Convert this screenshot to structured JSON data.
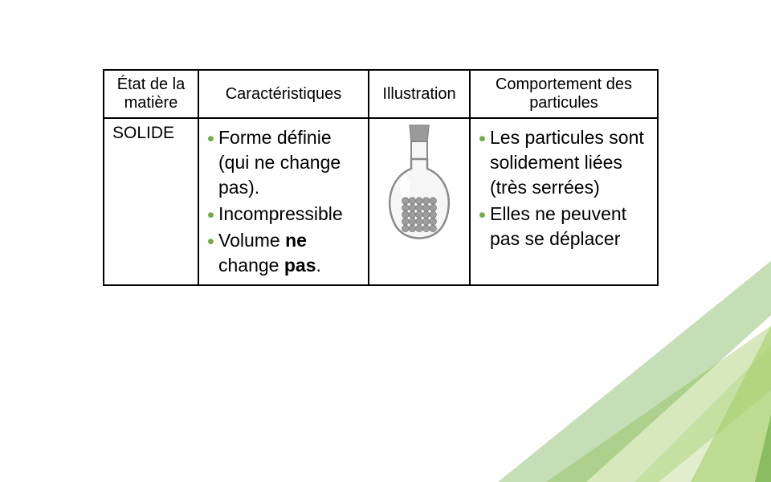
{
  "colors": {
    "accent": "#6fac46",
    "leaf_light": "#c7e0a6",
    "leaf_mid": "#a6ce6b",
    "leaf_dark": "#6fac46",
    "flask_body": "#f6f6f6",
    "flask_stroke": "#8a8a8a",
    "flask_stopper": "#9a9a9a",
    "particle": "#9e9e9e",
    "particle_stroke": "#7a7a7a"
  },
  "typography": {
    "header_fontsize": "20px",
    "body_fontsize": "23px",
    "rowlabel_fontsize": "21px"
  },
  "table": {
    "headers": {
      "state": "État de la matière",
      "characteristics": "Caractéristiques",
      "illustration": "Illustration",
      "behavior": "Comportement des particules"
    },
    "row": {
      "state_label": "SOLIDE",
      "characteristics": [
        {
          "html": "Forme définie (qui ne change pas)."
        },
        {
          "html": "Incompressible"
        },
        {
          "html": "Volume <b>ne</b> change <b>pas</b>."
        }
      ],
      "behavior": [
        {
          "html": "Les particules sont solidement liées (très serrées)"
        },
        {
          "html": "Elles ne peuvent pas se déplacer"
        }
      ]
    }
  }
}
